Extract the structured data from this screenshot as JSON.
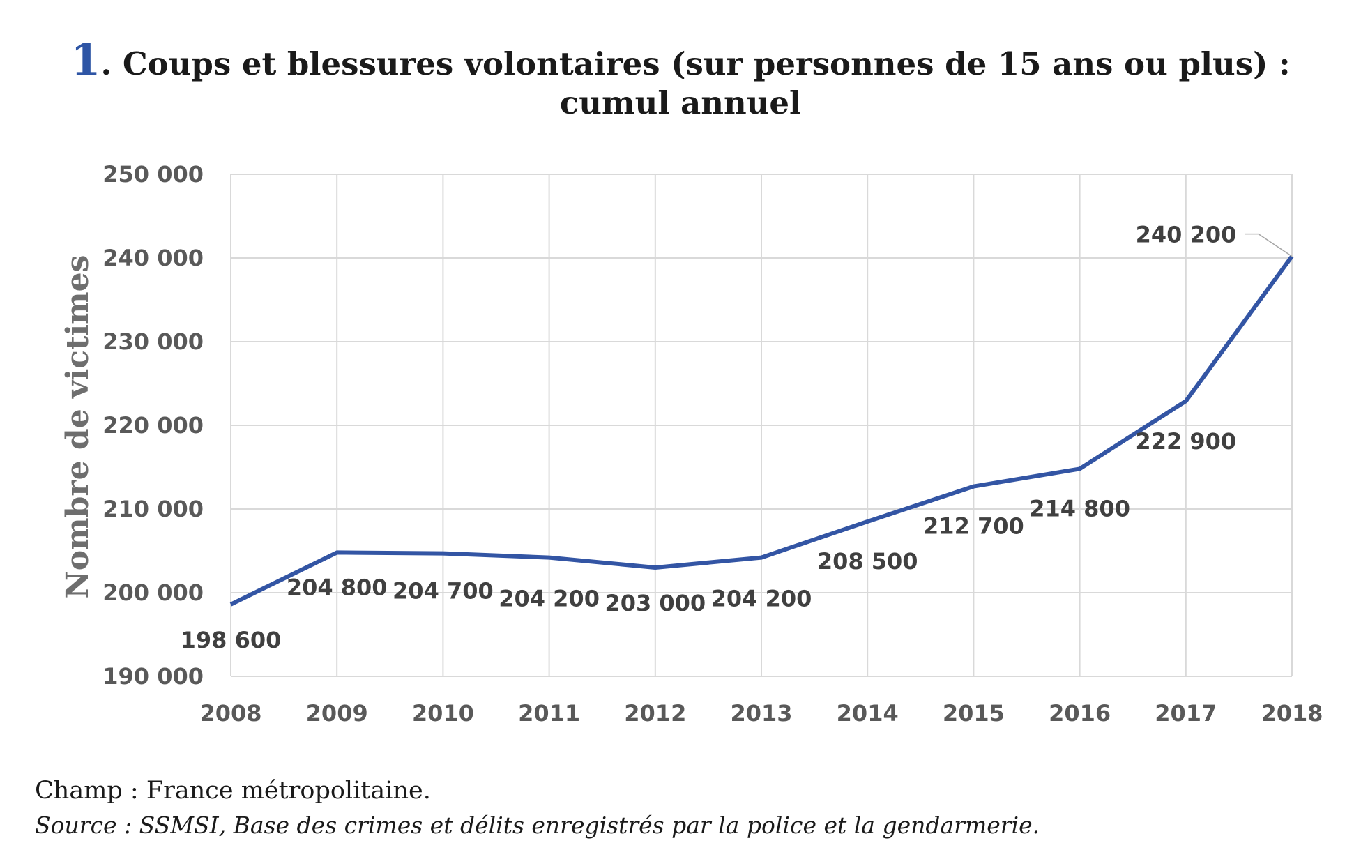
{
  "figure": {
    "number": "1",
    "title_line1": ". Coups et blessures volontaires (sur personnes de 15 ans ou plus) :",
    "title_line2": "cumul annuel"
  },
  "chart_data": {
    "type": "line",
    "x": [
      "2008",
      "2009",
      "2010",
      "2011",
      "2012",
      "2013",
      "2014",
      "2015",
      "2016",
      "2017",
      "2018"
    ],
    "series": [
      {
        "values": [
          198600,
          204800,
          204700,
          204200,
          203000,
          204200,
          208500,
          212700,
          214800,
          222900,
          240200
        ]
      }
    ],
    "data_labels": [
      "198 600",
      "204 800",
      "204 700",
      "204 200",
      "203 000",
      "204 200",
      "208 500",
      "212 700",
      "214 800",
      "222 900",
      "240 200"
    ],
    "ylabel": "Nombre de victimes",
    "xlabel": "",
    "ylim": [
      190000,
      250000
    ],
    "yticks": [
      190000,
      200000,
      210000,
      220000,
      230000,
      240000,
      250000
    ],
    "ytick_labels": [
      "190 000",
      "200 000",
      "210 000",
      "220 000",
      "230 000",
      "240 000",
      "250 000"
    ],
    "grid": true,
    "line_color": "#3355a4"
  },
  "footer": {
    "note": "Champ : France métropolitaine.",
    "source": "Source : SSMSI, Base des crimes et délits enregistrés par la police et la gendarmerie."
  }
}
